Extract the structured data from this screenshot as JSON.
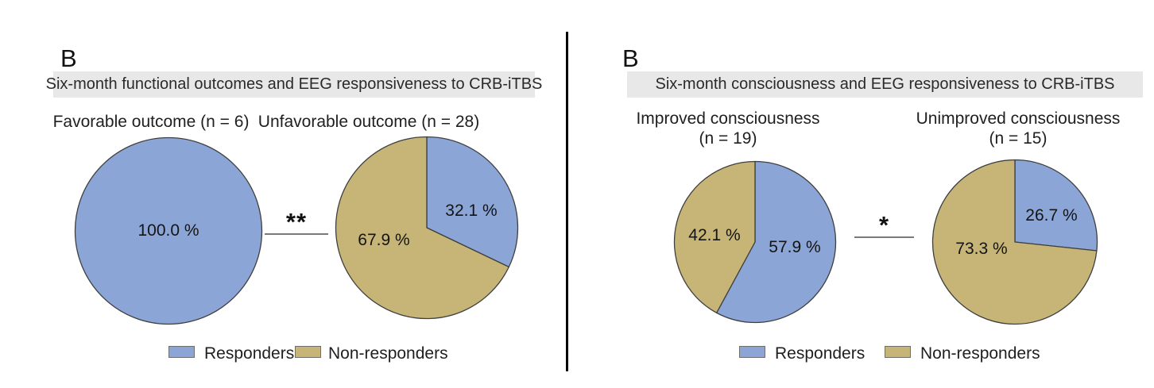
{
  "chart_data": [
    {
      "type": "pie",
      "panel_label": "B",
      "title": "Six-month functional outcomes and EEG responsiveness to CRB-iTBS",
      "categories": [
        "Responders",
        "Non-responders"
      ],
      "colors": [
        "#8BA6D6",
        "#C7B578"
      ],
      "legend_entries": [
        "Responders",
        "Non-responders"
      ],
      "significance": "**",
      "legend_position": "bottom",
      "pies": [
        {
          "subtitle": "Favorable outcome (n = 6)",
          "values": [
            100.0,
            0.0
          ],
          "slice_labels": [
            "100.0 %",
            ""
          ]
        },
        {
          "subtitle": "Unfavorable outcome (n = 28)",
          "values": [
            32.1,
            67.9
          ],
          "slice_labels": [
            "32.1 %",
            "67.9 %"
          ]
        }
      ]
    },
    {
      "type": "pie",
      "panel_label": "B",
      "title": "Six-month consciousness and EEG responsiveness to CRB-iTBS",
      "categories": [
        "Responders",
        "Non-responders"
      ],
      "colors": [
        "#8BA6D6",
        "#C7B578"
      ],
      "legend_entries": [
        "Responders",
        "Non-responders"
      ],
      "significance": "*",
      "legend_position": "bottom",
      "pies": [
        {
          "subtitle": "Improved consciousness",
          "subtitle_line2": "(n = 19)",
          "values": [
            57.9,
            42.1
          ],
          "slice_labels": [
            "57.9 %",
            "42.1 %"
          ]
        },
        {
          "subtitle": "Unimproved consciousness",
          "subtitle_line2": "(n = 15)",
          "values": [
            26.7,
            73.3
          ],
          "slice_labels": [
            "26.7 %",
            "73.3 %"
          ]
        }
      ]
    }
  ]
}
